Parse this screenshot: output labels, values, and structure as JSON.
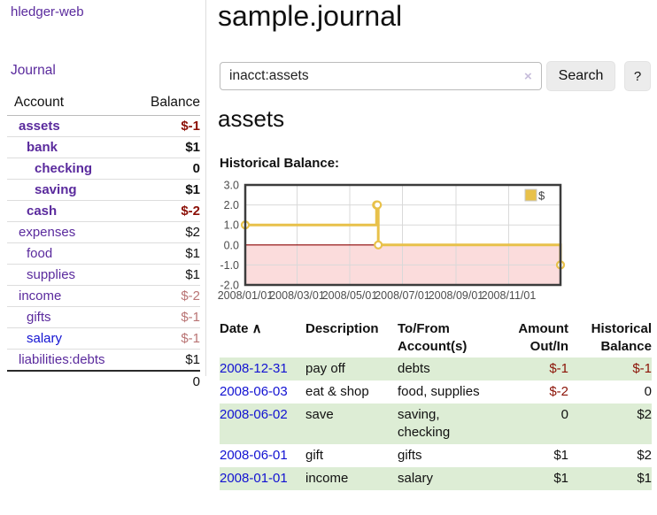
{
  "app": {
    "title": "hledger-web"
  },
  "sidebar": {
    "journal_link": "Journal",
    "table": {
      "account_header": "Account",
      "balance_header": "Balance",
      "accounts": [
        {
          "name": "assets",
          "indent": 0,
          "bold": true,
          "link_color": "purple",
          "balance": "$-1",
          "balance_style": "neg-strong"
        },
        {
          "name": "bank",
          "indent": 1,
          "bold": true,
          "link_color": "purple",
          "balance": "$1",
          "balance_style": "normal"
        },
        {
          "name": "checking",
          "indent": 2,
          "bold": true,
          "link_color": "purple",
          "balance": "0",
          "balance_style": "normal"
        },
        {
          "name": "saving",
          "indent": 2,
          "bold": true,
          "link_color": "purple",
          "balance": "$1",
          "balance_style": "normal"
        },
        {
          "name": "cash",
          "indent": 1,
          "bold": true,
          "link_color": "purple",
          "balance": "$-2",
          "balance_style": "neg-strong"
        },
        {
          "name": "expenses",
          "indent": 0,
          "bold": false,
          "link_color": "purple",
          "balance": "$2",
          "balance_style": "normal"
        },
        {
          "name": "food",
          "indent": 1,
          "bold": false,
          "link_color": "purple",
          "balance": "$1",
          "balance_style": "normal"
        },
        {
          "name": "supplies",
          "indent": 1,
          "bold": false,
          "link_color": "purple",
          "balance": "$1",
          "balance_style": "normal"
        },
        {
          "name": "income",
          "indent": 0,
          "bold": false,
          "link_color": "purple",
          "balance": "$-2",
          "balance_style": "neg-muted"
        },
        {
          "name": "gifts",
          "indent": 1,
          "bold": false,
          "link_color": "purple",
          "balance": "$-1",
          "balance_style": "neg-muted"
        },
        {
          "name": "salary",
          "indent": 1,
          "bold": false,
          "link_color": "blue",
          "balance": "$-1",
          "balance_style": "neg-muted"
        },
        {
          "name": "liabilities:debts",
          "indent": 0,
          "bold": false,
          "link_color": "purple",
          "balance": "$1",
          "balance_style": "normal"
        }
      ],
      "total": "0"
    }
  },
  "header": {
    "title": "sample.journal"
  },
  "search": {
    "query": "inacct:assets",
    "clear_icon": "×",
    "button_label": "Search",
    "help_label": "?"
  },
  "account_page": {
    "title": "assets",
    "chart_label": "Historical Balance:"
  },
  "chart_data": {
    "type": "line",
    "style": "step-after",
    "title": "Historical Balance",
    "x_range": [
      0,
      365
    ],
    "y_range": [
      -2,
      3
    ],
    "x_tick_labels": [
      "2008/01/01",
      "2008/03/01",
      "2008/05/01",
      "2008/07/01",
      "2008/09/01",
      "2008/11/01"
    ],
    "x_tick_positions": [
      0,
      60,
      121,
      182,
      244,
      305
    ],
    "y_tick_labels": [
      "3.0",
      "2.0",
      "1.0",
      "0.0",
      "-1.0",
      "-2.0"
    ],
    "y_tick_values": [
      3,
      2,
      1,
      0,
      -1,
      -2
    ],
    "grid": true,
    "legend_position": "top-right",
    "series": [
      {
        "name": "$",
        "color": "#e8c14a",
        "dates": [
          "2008-01-01",
          "2008-06-01",
          "2008-06-02",
          "2008-06-03",
          "2008-12-31"
        ],
        "points": [
          [
            0,
            1
          ],
          [
            152,
            2
          ],
          [
            153,
            2
          ],
          [
            154,
            0
          ],
          [
            365,
            -1
          ]
        ]
      }
    ],
    "negative_region_fill": "#fbdcdc",
    "zero_line_color": "#8b0000",
    "grid_color": "#d9d9d9",
    "border_color": "#3c3c3c",
    "legend": {
      "label": "$",
      "swatch_color": "#e8c14a"
    }
  },
  "register": {
    "columns": [
      {
        "lines": [
          "Date ∧"
        ],
        "align": "left",
        "sortable": true
      },
      {
        "lines": [
          "Description"
        ],
        "align": "left"
      },
      {
        "lines": [
          "To/From",
          "Account(s)"
        ],
        "align": "left"
      },
      {
        "lines": [
          "Amount",
          "Out/In"
        ],
        "align": "right"
      },
      {
        "lines": [
          "Historical",
          "Balance"
        ],
        "align": "right"
      }
    ],
    "rows": [
      {
        "date": "2008-12-31",
        "description": "pay off",
        "accounts": "debts",
        "amount": "$-1",
        "amount_negative": true,
        "balance": "$-1",
        "balance_negative": true
      },
      {
        "date": "2008-06-03",
        "description": "eat & shop",
        "accounts": "food, supplies",
        "amount": "$-2",
        "amount_negative": true,
        "balance": "0",
        "balance_negative": false
      },
      {
        "date": "2008-06-02",
        "description": "save",
        "accounts": "saving, checking",
        "amount": "0",
        "amount_negative": false,
        "balance": "$2",
        "balance_negative": false
      },
      {
        "date": "2008-06-01",
        "description": "gift",
        "accounts": "gifts",
        "amount": "$1",
        "amount_negative": false,
        "balance": "$2",
        "balance_negative": false
      },
      {
        "date": "2008-01-01",
        "description": "income",
        "accounts": "salary",
        "amount": "$1",
        "amount_negative": false,
        "balance": "$1",
        "balance_negative": false
      }
    ]
  }
}
